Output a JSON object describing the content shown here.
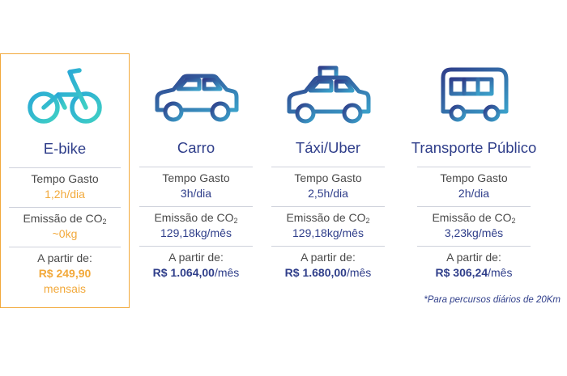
{
  "colors": {
    "primary": "#2f3e8a",
    "teal": "#3ab9c9",
    "accent": "#f2a93b",
    "label": "#4a4a4a"
  },
  "modes": [
    {
      "name": "E-bike",
      "icon": "bicycle-icon",
      "tempo_label": "Tempo Gasto",
      "tempo_value": "1,2h/dia",
      "emissao_label": "Emissão de CO",
      "emissao_sub": "2",
      "emissao_value": "~0kg",
      "preco_label": "A partir de:",
      "preco_value": "R$ 249,90",
      "preco_suffix": "",
      "preco_line2": "mensais"
    },
    {
      "name": "Carro",
      "icon": "car-icon",
      "tempo_label": "Tempo Gasto",
      "tempo_value": "3h/dia",
      "emissao_label": "Emissão de CO",
      "emissao_sub": "2",
      "emissao_value": "129,18kg/mês",
      "preco_label": "A partir de:",
      "preco_value": "R$ 1.064,00",
      "preco_suffix": "/mês",
      "preco_line2": ""
    },
    {
      "name": "Táxi/Uber",
      "icon": "taxi-icon",
      "tempo_label": "Tempo Gasto",
      "tempo_value": "2,5h/dia",
      "emissao_label": "Emissão de CO",
      "emissao_sub": "2",
      "emissao_value": "129,18kg/mês",
      "preco_label": "A partir de:",
      "preco_value": "R$ 1.680,00",
      "preco_suffix": "/mês",
      "preco_line2": ""
    },
    {
      "name": "Transporte Público",
      "icon": "bus-icon",
      "tempo_label": "Tempo Gasto",
      "tempo_value": "2h/dia",
      "emissao_label": "Emissão de CO",
      "emissao_sub": "2",
      "emissao_value": "3,23kg/mês",
      "preco_label": "A partir de:",
      "preco_value": "R$ 306,24",
      "preco_suffix": "/mês",
      "preco_line2": ""
    }
  ],
  "footnote": "*Para percursos diários de 20Km"
}
